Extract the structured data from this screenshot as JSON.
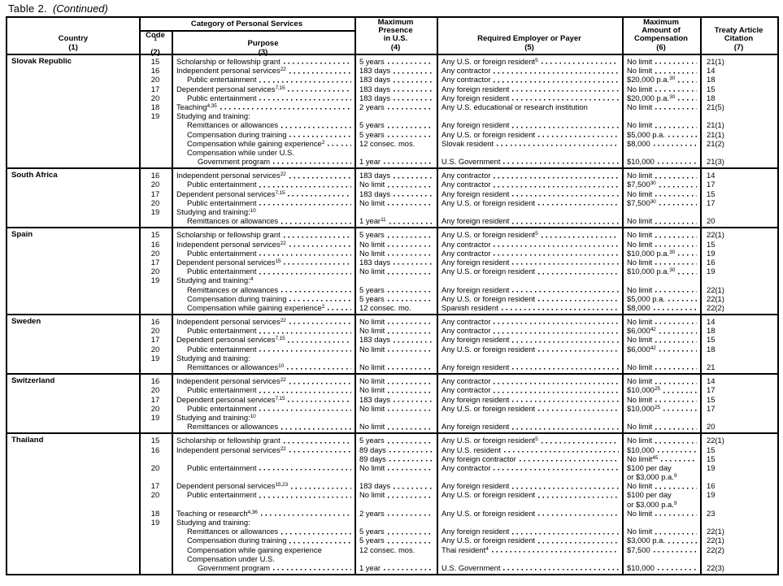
{
  "page": {
    "title_prefix": "Table 2.",
    "title_suffix": "(Continued)"
  },
  "table": {
    "header": {
      "country": "Country\n(1)",
      "category": "Category of Personal Services",
      "code": "Code^1^\n(2)",
      "purpose": "Purpose\n(3)",
      "presence": "Maximum\nPresence\nin U.S.\n(4)",
      "employer": "Required Employer or Payer\n(5)",
      "compensation": "Maximum\nAmount of\nCompensation\n(6)",
      "treaty": "Treaty Article\nCitation\n(7)"
    },
    "sections": [
      {
        "country": "Slovak Republic",
        "rows": [
          {
            "c": "15",
            "p": "Scholarship or fellowship grant",
            "m": "5 years",
            "e": "Any U.S. or foreign resident^5^",
            "a": "No limit",
            "t": "21(1)"
          },
          {
            "c": "16",
            "p": "Independent personal services^22^",
            "m": "183 days",
            "e": "Any contractor",
            "a": "No limit",
            "t": "14"
          },
          {
            "c": "20",
            "p": "Public entertainment",
            "i": 1,
            "m": "183 days",
            "e": "Any contractor",
            "a": "$20,000 p.a.^30^",
            "t": "18"
          },
          {
            "c": "17",
            "p": "Dependent personal services^7,15^",
            "m": "183 days",
            "e": "Any foreign resident",
            "a": "No limit",
            "t": "15"
          },
          {
            "c": "20",
            "p": "Public entertainment",
            "i": 1,
            "m": "183 days",
            "e": "Any foreign resident",
            "a": "$20,000 p.a.^30^",
            "t": "18"
          },
          {
            "c": "18",
            "p": "Teaching^4,35^",
            "m": "2 years",
            "e": "Any U.S. educational or research institution",
            "ne": true,
            "a": "No limit",
            "t": "21(5)"
          },
          {
            "c": "19",
            "p": "Studying and training:",
            "np": true
          },
          {
            "p": "Remittances or allowances",
            "i": 1,
            "m": "5 years",
            "e": "Any foreign resident",
            "a": "No limit",
            "t": "21(1)"
          },
          {
            "p": "Compensation during training",
            "i": 1,
            "m": "5 years",
            "e": "Any U.S. or foreign resident",
            "a": "$5,000 p.a.",
            "t": "21(1)"
          },
          {
            "p": "Compensation while gaining experience^2^",
            "i": 1,
            "m": "12 consec. mos.",
            "nm": true,
            "e": "Slovak resident",
            "a": "$8,000",
            "t": "21(2)"
          },
          {
            "p": "Compensation while under U.S.",
            "i": 1,
            "np": true
          },
          {
            "p": "Government program",
            "i": 2,
            "m": "1 year",
            "e": "U.S. Government",
            "a": "$10,000",
            "t": "21(3)"
          }
        ]
      },
      {
        "country": "South Africa",
        "rows": [
          {
            "c": "16",
            "p": "Independent personal services^22^",
            "m": "183 days",
            "e": "Any contractor",
            "a": "No limit",
            "t": "14"
          },
          {
            "c": "20",
            "p": "Public entertainment",
            "i": 1,
            "m": "No limit",
            "e": "Any contractor",
            "a": "$7,500^30^",
            "t": "17"
          },
          {
            "c": "17",
            "p": "Dependent personal services^7,15^",
            "m": "183 days",
            "e": "Any foreign resident",
            "a": "No limit",
            "t": "15"
          },
          {
            "c": "20",
            "p": "Public entertainment",
            "i": 1,
            "m": "No limit",
            "e": "Any U.S. or foreign resident",
            "a": "$7,500^30^",
            "t": "17"
          },
          {
            "c": "19",
            "p": "Studying and training:^10^",
            "np": true
          },
          {
            "p": "Remittances or allowances",
            "i": 1,
            "m": "1 year^11^",
            "e": "Any foreign resident",
            "a": "No limit",
            "t": "20"
          }
        ]
      },
      {
        "country": "Spain",
        "rows": [
          {
            "c": "15",
            "p": "Scholarship or fellowship grant",
            "m": "5 years",
            "e": "Any U.S. or foreign resident^5^",
            "a": "No limit",
            "t": "22(1)"
          },
          {
            "c": "16",
            "p": "Independent personal services^22^",
            "m": "No limit",
            "e": "Any contractor",
            "a": "No limit",
            "t": "15"
          },
          {
            "c": "20",
            "p": "Public entertainment",
            "i": 1,
            "m": "No limit",
            "e": "Any contractor",
            "a": "$10,000 p.a.^30^",
            "t": "19"
          },
          {
            "c": "17",
            "p": "Dependent personal services^15^",
            "m": "183 days",
            "e": "Any foreign resident",
            "a": "No limit",
            "t": "16"
          },
          {
            "c": "20",
            "p": "Public entertainment",
            "i": 1,
            "m": "No limit",
            "e": "Any U.S. or foreign resident",
            "a": "$10,000 p.a.^30^",
            "t": "19"
          },
          {
            "c": "19",
            "p": "Studying and training:^4^",
            "np": true
          },
          {
            "p": "Remittances or allowances",
            "i": 1,
            "m": "5 years",
            "e": "Any foreign resident",
            "a": "No limit",
            "t": "22(1)"
          },
          {
            "p": "Compensation during training",
            "i": 1,
            "m": "5 years",
            "e": "Any U.S. or foreign resident",
            "a": "$5,000 p.a.",
            "t": "22(1)"
          },
          {
            "p": "Compensation while gaining experience^2^",
            "i": 1,
            "m": "12 consec. mo.",
            "nm": true,
            "e": "Spanish resident",
            "a": "$8,000",
            "t": "22(2)"
          }
        ]
      },
      {
        "country": "Sweden",
        "rows": [
          {
            "c": "16",
            "p": "Independent personal services^22^",
            "m": "No limit",
            "e": "Any contractor",
            "a": "No limit",
            "t": "14"
          },
          {
            "c": "20",
            "p": "Public entertainment",
            "i": 1,
            "m": "No limit",
            "e": "Any contractor",
            "a": "$6,000^42^",
            "t": "18"
          },
          {
            "c": "17",
            "p": "Dependent personal services^7,15^",
            "m": "183 days",
            "e": "Any foreign resident",
            "a": "No limit",
            "t": "15"
          },
          {
            "c": "20",
            "p": "Public entertainment",
            "i": 1,
            "m": "No limit",
            "e": "Any U.S. or foreign resident",
            "a": "$6,000^42^",
            "t": "18"
          },
          {
            "c": "19",
            "p": "Studying and training:",
            "np": true
          },
          {
            "p": "Remittances or allowances^10^",
            "i": 1,
            "m": "No limit",
            "e": "Any foreign resident",
            "a": "No limit",
            "t": "21"
          }
        ]
      },
      {
        "country": "Switzerland",
        "rows": [
          {
            "c": "16",
            "p": "Independent personal services^22^",
            "m": "No limit",
            "e": "Any contractor",
            "a": "No limit",
            "t": "14"
          },
          {
            "c": "20",
            "p": "Public entertainment",
            "i": 1,
            "m": "No limit",
            "e": "Any contractor",
            "a": "$10,000^25^",
            "t": "17"
          },
          {
            "c": "17",
            "p": "Dependent personal services^7,15^",
            "m": "183 days",
            "e": "Any foreign resident",
            "a": "No limit",
            "t": "15"
          },
          {
            "c": "20",
            "p": "Public entertainment",
            "i": 1,
            "m": "No limit",
            "e": "Any U.S. or foreign resident",
            "a": "$10,000^25^",
            "t": "17"
          },
          {
            "c": "19",
            "p": "Studying and training:^10^",
            "np": true
          },
          {
            "p": "Remittances or allowances",
            "i": 1,
            "m": "No limit",
            "e": "Any foreign resident",
            "a": "No limit",
            "t": "20"
          }
        ]
      },
      {
        "country": "Thailand",
        "rows": [
          {
            "c": "15",
            "p": "Scholarship or fellowship grant",
            "m": "5 years",
            "e": "Any U.S. or foreign resident^5^",
            "a": "No limit",
            "t": "22(1)"
          },
          {
            "c": "16",
            "p": "Independent personal services^22^",
            "m": "89 days",
            "e": "Any U.S. resident",
            "a": "$10,000",
            "t": "15"
          },
          {
            "m": "89 days",
            "e": "Any foreign contractor",
            "a": "No limit^45^",
            "t": "15"
          },
          {
            "c": "20",
            "p": "Public entertainment",
            "i": 1,
            "m": "No limit",
            "e": "Any contractor",
            "a": "$100 per day",
            "na": true,
            "t": "19"
          },
          {
            "a": "or $3,000 p.a.^9^",
            "na": true
          },
          {
            "c": "17",
            "p": "Dependent personal services^15,23^",
            "m": "183 days",
            "e": "Any foreign resident",
            "a": "No limit",
            "t": "16"
          },
          {
            "c": "20",
            "p": "Public entertainment",
            "i": 1,
            "m": "No limit",
            "e": "Any U.S. or foreign resident",
            "a": "$100 per day",
            "na": true,
            "t": "19"
          },
          {
            "a": "or $3,000 p.a.^9^",
            "na": true
          },
          {
            "c": "18",
            "p": "Teaching or research^4,36^",
            "m": "2 years",
            "e": "Any U.S. or foreign resident",
            "a": "No limit",
            "t": "23"
          },
          {
            "c": "19",
            "p": "Studying and training:",
            "np": true
          },
          {
            "p": "Remittances or allowances",
            "i": 1,
            "m": "5 years",
            "e": "Any foreign resident",
            "a": "No limit",
            "t": "22(1)"
          },
          {
            "p": "Compensation during training",
            "i": 1,
            "m": "5 years",
            "e": "Any U.S. or foreign resident",
            "a": "$3,000 p.a.",
            "t": "22(1)"
          },
          {
            "p": "Compensation while gaining experience",
            "i": 1,
            "np": true,
            "m": "12 consec. mos.",
            "nm": true,
            "e": "Thai resident^4^",
            "a": "$7,500",
            "t": "22(2)"
          },
          {
            "p": "Compensation under U.S.",
            "i": 1,
            "np": true
          },
          {
            "p": "Government program",
            "i": 2,
            "m": "1 year",
            "e": "U.S. Government",
            "a": "$10,000",
            "t": "22(3)"
          }
        ]
      }
    ]
  }
}
